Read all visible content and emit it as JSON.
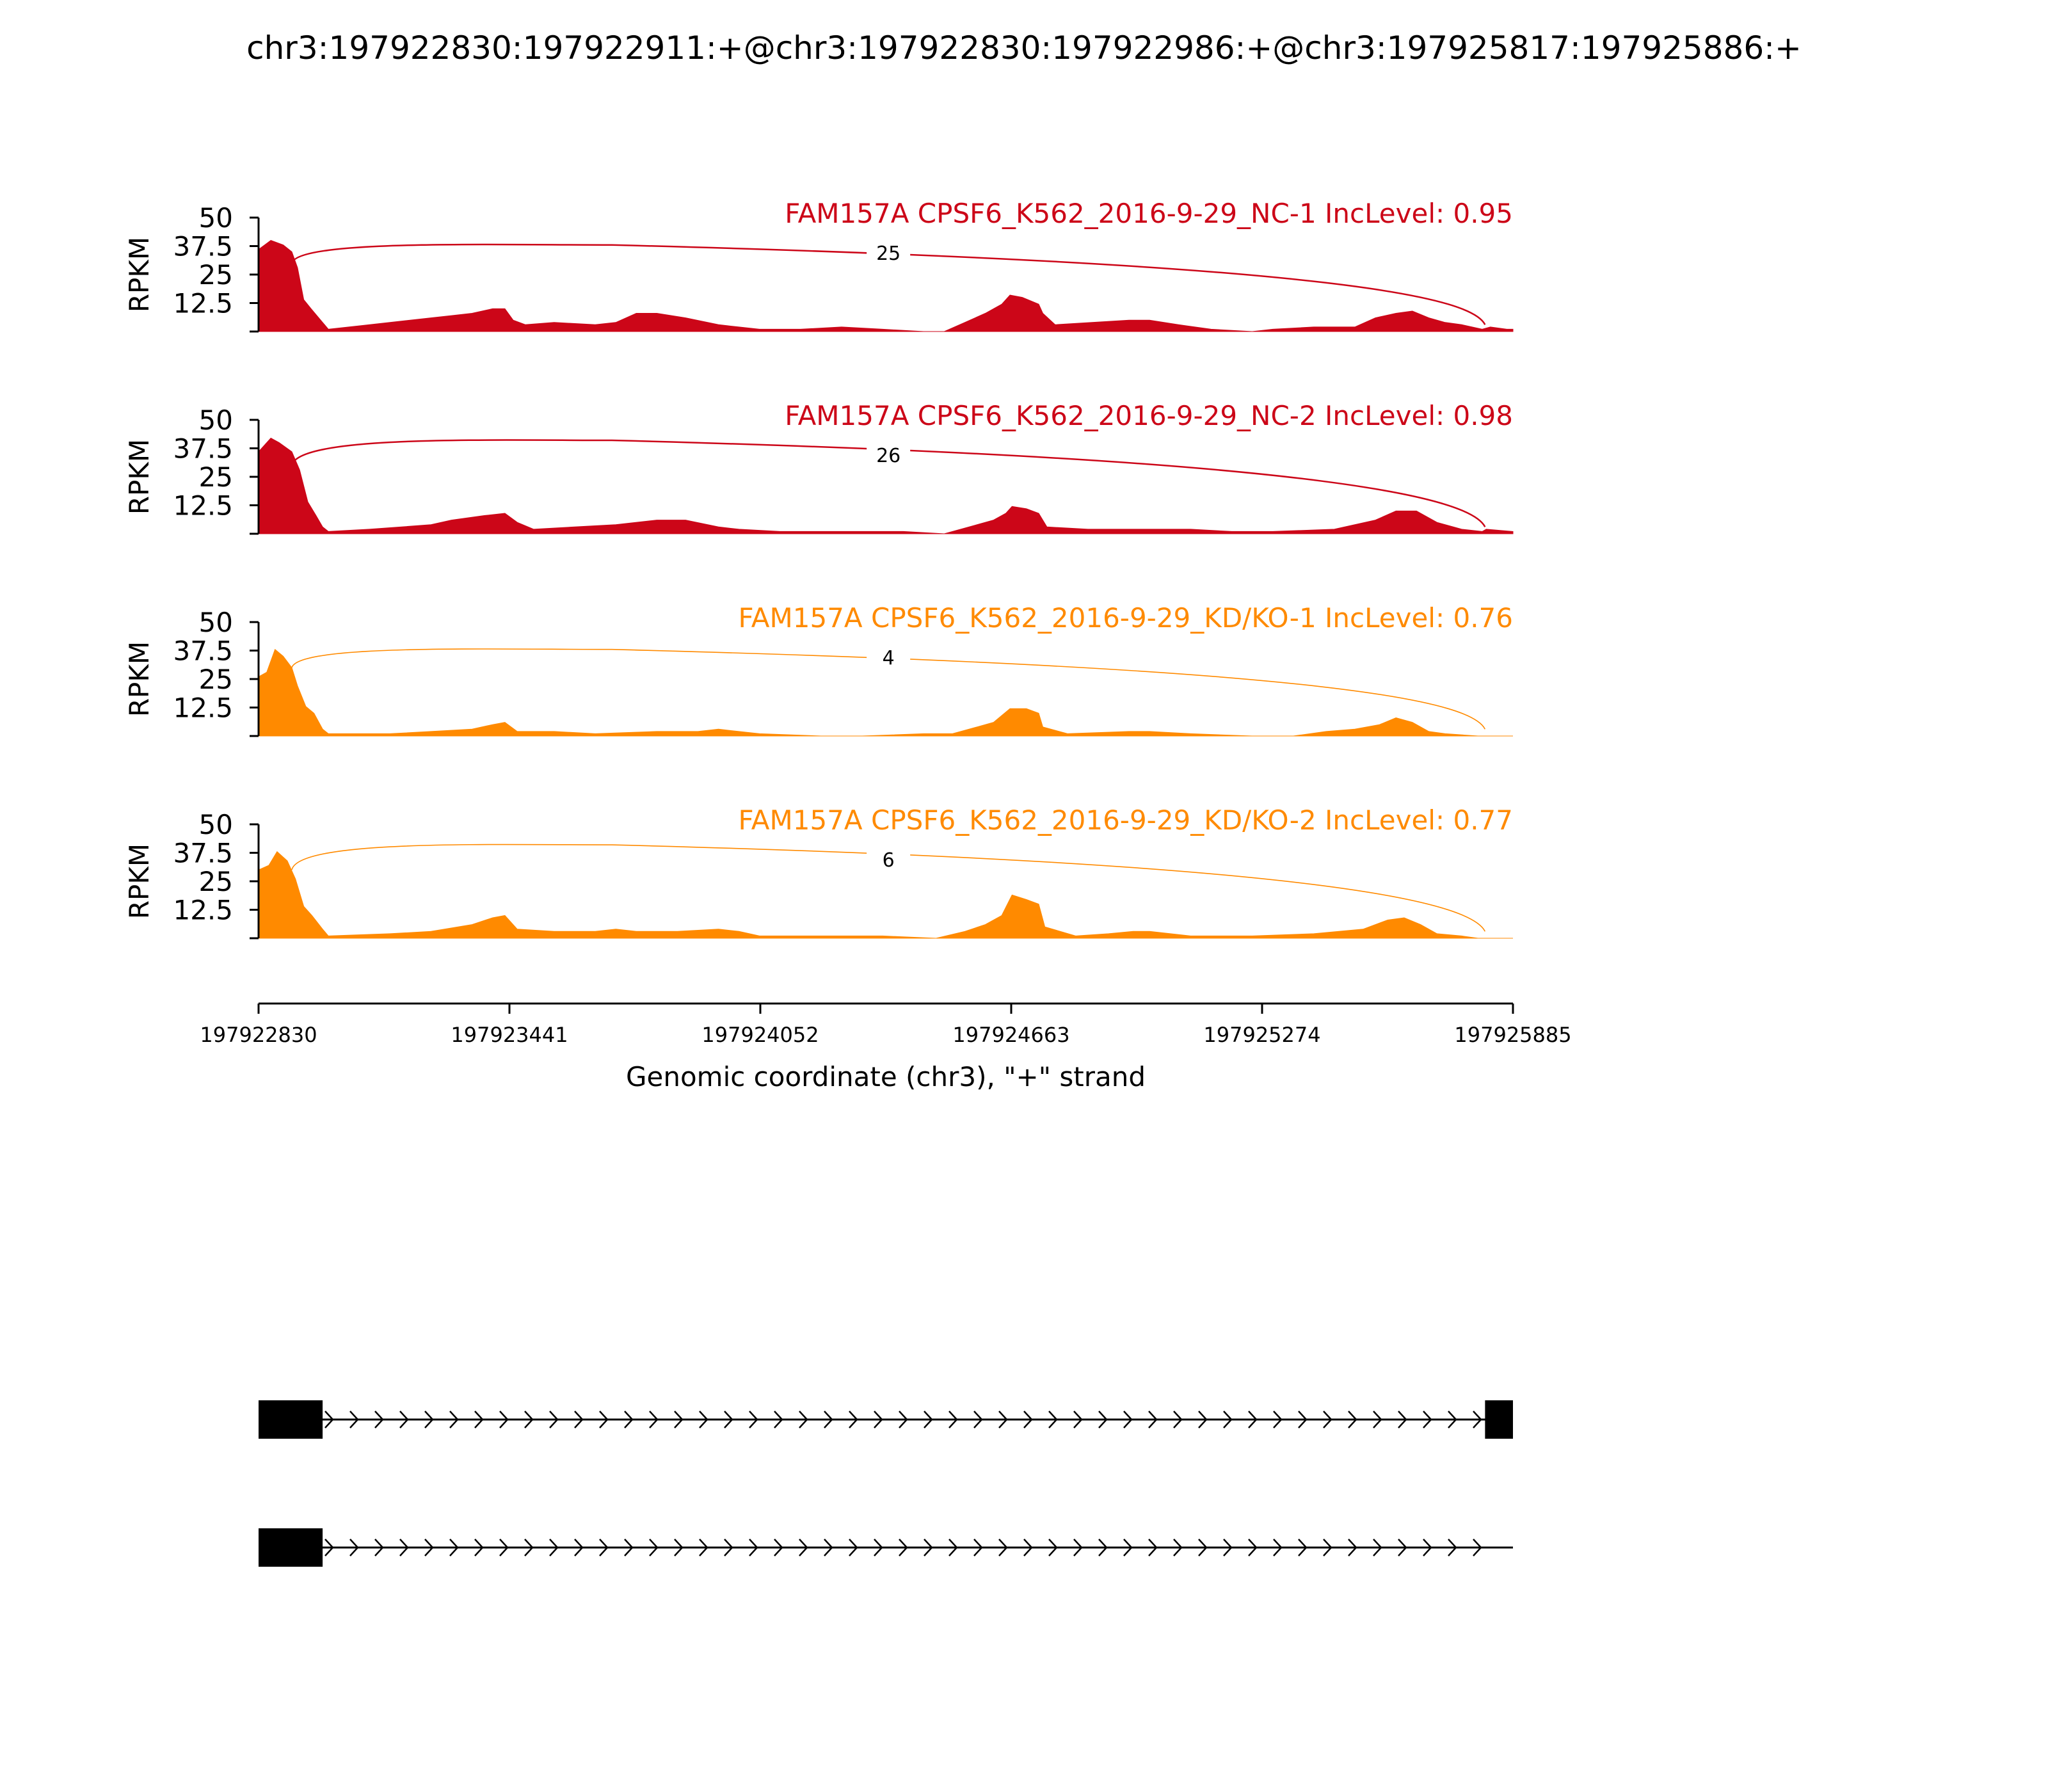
{
  "title": "chr3:197922830:197922911:+@chr3:197922830:197922986:+@chr3:197925817:197925886:+",
  "y_axis_label": "RPKM",
  "x_axis_label": "Genomic coordinate (chr3), \"+\" strand",
  "colors": {
    "nc": "#cc0618",
    "kd": "#ff8a00",
    "gene_model": "#000000"
  },
  "chart_data": {
    "type": "area",
    "x_range": [
      197922830,
      197925885
    ],
    "x_ticks": [
      "197922830",
      "197923441",
      "197924052",
      "197924663",
      "197925274",
      "197925885"
    ],
    "y_range": [
      0,
      50
    ],
    "y_ticks": [
      "12.5",
      "25",
      "37.5",
      "50"
    ],
    "grid": false,
    "tracks": [
      {
        "label": "FAM157A CPSF6_K562_2016-9-29_NC-1 IncLevel: 0.95",
        "color": "#cc0618",
        "junction_count": "25",
        "junction_from": 197922911,
        "junction_to": 197925817,
        "coverage": [
          [
            197922830,
            36
          ],
          [
            197922860,
            40
          ],
          [
            197922890,
            38
          ],
          [
            197922911,
            35
          ],
          [
            197922925,
            28
          ],
          [
            197922940,
            14
          ],
          [
            197922958,
            10
          ],
          [
            197922986,
            4
          ],
          [
            197923000,
            1
          ],
          [
            197923050,
            2
          ],
          [
            197923150,
            4
          ],
          [
            197923250,
            6
          ],
          [
            197923300,
            7
          ],
          [
            197923350,
            8
          ],
          [
            197923400,
            10
          ],
          [
            197923430,
            10
          ],
          [
            197923450,
            5
          ],
          [
            197923480,
            3
          ],
          [
            197923550,
            4
          ],
          [
            197923650,
            3
          ],
          [
            197923700,
            4
          ],
          [
            197923750,
            8
          ],
          [
            197923800,
            8
          ],
          [
            197923870,
            6
          ],
          [
            197923950,
            3
          ],
          [
            197924000,
            2
          ],
          [
            197924050,
            1
          ],
          [
            197924150,
            1
          ],
          [
            197924250,
            2
          ],
          [
            197924350,
            1
          ],
          [
            197924450,
            0
          ],
          [
            197924500,
            0
          ],
          [
            197924550,
            4
          ],
          [
            197924600,
            8
          ],
          [
            197924640,
            12
          ],
          [
            197924660,
            16
          ],
          [
            197924690,
            15
          ],
          [
            197924730,
            12
          ],
          [
            197924740,
            8
          ],
          [
            197924770,
            3
          ],
          [
            197924860,
            4
          ],
          [
            197924950,
            5
          ],
          [
            197925000,
            5
          ],
          [
            197925070,
            3
          ],
          [
            197925150,
            1
          ],
          [
            197925250,
            0
          ],
          [
            197925300,
            1
          ],
          [
            197925400,
            2
          ],
          [
            197925500,
            2
          ],
          [
            197925550,
            6
          ],
          [
            197925600,
            8
          ],
          [
            197925640,
            9
          ],
          [
            197925680,
            6
          ],
          [
            197925720,
            4
          ],
          [
            197925760,
            3
          ],
          [
            197925810,
            1
          ],
          [
            197925830,
            2
          ],
          [
            197925870,
            1
          ],
          [
            197925885,
            1
          ]
        ]
      },
      {
        "label": "FAM157A CPSF6_K562_2016-9-29_NC-2 IncLevel: 0.98",
        "color": "#cc0618",
        "junction_count": "26",
        "junction_from": 197922911,
        "junction_to": 197925817,
        "coverage": [
          [
            197922830,
            36
          ],
          [
            197922860,
            42
          ],
          [
            197922880,
            40
          ],
          [
            197922911,
            36
          ],
          [
            197922930,
            28
          ],
          [
            197922950,
            14
          ],
          [
            197922970,
            8
          ],
          [
            197922986,
            3
          ],
          [
            197923000,
            1
          ],
          [
            197923100,
            2
          ],
          [
            197923250,
            4
          ],
          [
            197923300,
            6
          ],
          [
            197923380,
            8
          ],
          [
            197923430,
            9
          ],
          [
            197923460,
            5
          ],
          [
            197923500,
            2
          ],
          [
            197923600,
            3
          ],
          [
            197923700,
            4
          ],
          [
            197923800,
            6
          ],
          [
            197923870,
            6
          ],
          [
            197923950,
            3
          ],
          [
            197924000,
            2
          ],
          [
            197924100,
            1
          ],
          [
            197924250,
            1
          ],
          [
            197924400,
            1
          ],
          [
            197924500,
            0
          ],
          [
            197924560,
            3
          ],
          [
            197924620,
            6
          ],
          [
            197924650,
            9
          ],
          [
            197924665,
            12
          ],
          [
            197924700,
            11
          ],
          [
            197924730,
            9
          ],
          [
            197924750,
            3
          ],
          [
            197924850,
            2
          ],
          [
            197924950,
            2
          ],
          [
            197925000,
            2
          ],
          [
            197925100,
            2
          ],
          [
            197925200,
            1
          ],
          [
            197925300,
            1
          ],
          [
            197925450,
            2
          ],
          [
            197925550,
            6
          ],
          [
            197925600,
            10
          ],
          [
            197925650,
            10
          ],
          [
            197925700,
            5
          ],
          [
            197925760,
            2
          ],
          [
            197925810,
            1
          ],
          [
            197925820,
            2
          ],
          [
            197925885,
            1
          ]
        ]
      },
      {
        "label": "FAM157A CPSF6_K562_2016-9-29_KD/KO-1 IncLevel: 0.76",
        "color": "#ff8a00",
        "junction_count": "4",
        "junction_from": 197922911,
        "junction_to": 197925817,
        "coverage": [
          [
            197922830,
            26
          ],
          [
            197922850,
            28
          ],
          [
            197922870,
            38
          ],
          [
            197922890,
            35
          ],
          [
            197922911,
            30
          ],
          [
            197922925,
            22
          ],
          [
            197922945,
            13
          ],
          [
            197922965,
            10
          ],
          [
            197922986,
            3
          ],
          [
            197923000,
            1
          ],
          [
            197923150,
            1
          ],
          [
            197923250,
            2
          ],
          [
            197923350,
            3
          ],
          [
            197923400,
            5
          ],
          [
            197923430,
            6
          ],
          [
            197923460,
            2
          ],
          [
            197923550,
            2
          ],
          [
            197923650,
            1
          ],
          [
            197923800,
            2
          ],
          [
            197923900,
            2
          ],
          [
            197923950,
            3
          ],
          [
            197924000,
            2
          ],
          [
            197924050,
            1
          ],
          [
            197924200,
            0
          ],
          [
            197924300,
            0
          ],
          [
            197924450,
            1
          ],
          [
            197924520,
            1
          ],
          [
            197924580,
            4
          ],
          [
            197924620,
            6
          ],
          [
            197924660,
            12
          ],
          [
            197924700,
            12
          ],
          [
            197924730,
            10
          ],
          [
            197924740,
            4
          ],
          [
            197924800,
            1
          ],
          [
            197924950,
            2
          ],
          [
            197925000,
            2
          ],
          [
            197925100,
            1
          ],
          [
            197925250,
            0
          ],
          [
            197925350,
            0
          ],
          [
            197925430,
            2
          ],
          [
            197925500,
            3
          ],
          [
            197925560,
            5
          ],
          [
            197925600,
            8
          ],
          [
            197925640,
            6
          ],
          [
            197925680,
            2
          ],
          [
            197925720,
            1
          ],
          [
            197925800,
            0
          ],
          [
            197925885,
            0
          ]
        ]
      },
      {
        "label": "FAM157A CPSF6_K562_2016-9-29_KD/KO-2 IncLevel: 0.77",
        "color": "#ff8a00",
        "junction_count": "6",
        "junction_from": 197922911,
        "junction_to": 197925817,
        "coverage": [
          [
            197922830,
            30
          ],
          [
            197922855,
            32
          ],
          [
            197922875,
            38
          ],
          [
            197922900,
            34
          ],
          [
            197922920,
            26
          ],
          [
            197922940,
            14
          ],
          [
            197922960,
            10
          ],
          [
            197922986,
            4
          ],
          [
            197923000,
            1
          ],
          [
            197923150,
            2
          ],
          [
            197923250,
            3
          ],
          [
            197923350,
            6
          ],
          [
            197923400,
            9
          ],
          [
            197923430,
            10
          ],
          [
            197923460,
            4
          ],
          [
            197923550,
            3
          ],
          [
            197923650,
            3
          ],
          [
            197923700,
            4
          ],
          [
            197923750,
            3
          ],
          [
            197923850,
            3
          ],
          [
            197923950,
            4
          ],
          [
            197924000,
            3
          ],
          [
            197924050,
            1
          ],
          [
            197924200,
            1
          ],
          [
            197924350,
            1
          ],
          [
            197924480,
            0
          ],
          [
            197924550,
            3
          ],
          [
            197924600,
            6
          ],
          [
            197924640,
            10
          ],
          [
            197924665,
            19
          ],
          [
            197924700,
            17
          ],
          [
            197924730,
            15
          ],
          [
            197924745,
            5
          ],
          [
            197924820,
            1
          ],
          [
            197924900,
            2
          ],
          [
            197924960,
            3
          ],
          [
            197925000,
            3
          ],
          [
            197925100,
            1
          ],
          [
            197925250,
            1
          ],
          [
            197925400,
            2
          ],
          [
            197925520,
            4
          ],
          [
            197925580,
            8
          ],
          [
            197925620,
            9
          ],
          [
            197925660,
            6
          ],
          [
            197925700,
            2
          ],
          [
            197925760,
            1
          ],
          [
            197925800,
            0
          ],
          [
            197925885,
            0
          ]
        ]
      }
    ],
    "gene_models": [
      {
        "exons": [
          [
            197922830,
            197922986
          ],
          [
            197925817,
            197925886
          ]
        ]
      },
      {
        "exons": [
          [
            197922830,
            197922986
          ]
        ]
      }
    ]
  }
}
